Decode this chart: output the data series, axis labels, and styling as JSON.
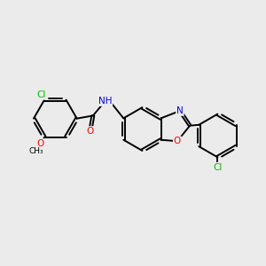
{
  "background_color": "#ebebeb",
  "bond_color": "#000000",
  "atom_colors": {
    "Cl": "#00bb00",
    "O": "#ff0000",
    "N": "#0000ff",
    "C": "#000000"
  },
  "lw": 1.4,
  "dbo": 0.055,
  "figsize": [
    3.0,
    3.0
  ],
  "dpi": 100
}
